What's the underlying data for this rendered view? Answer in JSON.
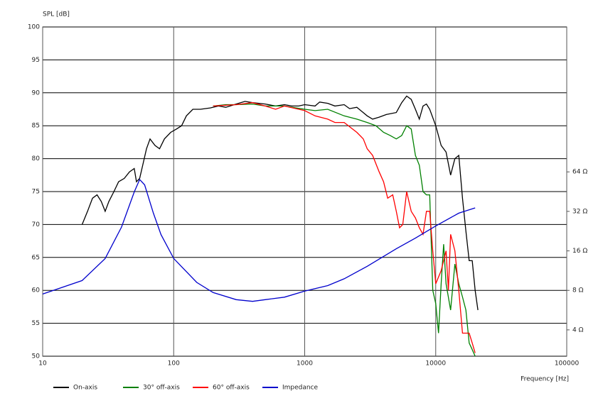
{
  "chart_data": {
    "type": "line",
    "y_label": "SPL [dB]",
    "x_label": "Frequency [Hz]",
    "x_log": true,
    "y2_log": true,
    "grid": true,
    "xlim": [
      10,
      100000
    ],
    "xticks": [
      10,
      100,
      1000,
      10000,
      100000
    ],
    "ylim": [
      50,
      100
    ],
    "yticks": [
      50,
      55,
      60,
      65,
      70,
      75,
      80,
      85,
      90,
      95,
      100
    ],
    "y2lim": [
      2.52,
      814
    ],
    "y2ticks": [
      {
        "value": 4,
        "label": "4 Ω"
      },
      {
        "value": 8,
        "label": "8 Ω"
      },
      {
        "value": 16,
        "label": "16 Ω"
      },
      {
        "value": 32,
        "label": "32 Ω"
      },
      {
        "value": 64,
        "label": "64 Ω"
      }
    ],
    "series": [
      {
        "name": "On-axis",
        "color": "#000000",
        "x": [
          20,
          22,
          24,
          26,
          28,
          30,
          32,
          35,
          38,
          42,
          46,
          50,
          52,
          55,
          58,
          62,
          66,
          72,
          78,
          85,
          95,
          105,
          115,
          125,
          140,
          160,
          190,
          220,
          250,
          300,
          350,
          400,
          500,
          600,
          700,
          800,
          900,
          1000,
          1200,
          1300,
          1500,
          1700,
          2000,
          2200,
          2500,
          3000,
          3300,
          3700,
          4200,
          5000,
          5500,
          6000,
          6500,
          7000,
          7500,
          8000,
          8500,
          9000,
          10000,
          11000,
          12000,
          13000,
          14000,
          15000,
          16000,
          17000,
          18000,
          19000,
          20000,
          21000
        ],
        "values": [
          70,
          72,
          74,
          74.5,
          73.5,
          72,
          73.5,
          75,
          76.5,
          77,
          78,
          78.5,
          76.5,
          77,
          79,
          81.5,
          83,
          82,
          81.5,
          83,
          84,
          84.5,
          85,
          86.5,
          87.5,
          87.5,
          87.7,
          88,
          87.8,
          88.3,
          88.7,
          88.5,
          88.3,
          88,
          88.2,
          88,
          88,
          88.2,
          88,
          88.6,
          88.4,
          88,
          88.2,
          87.6,
          87.8,
          86.5,
          86,
          86.3,
          86.7,
          87,
          88.5,
          89.5,
          89,
          87.5,
          86,
          88,
          88.3,
          87.5,
          85,
          82,
          81,
          77.5,
          80,
          80.5,
          74,
          69,
          64.5,
          64.5,
          60,
          57
        ]
      },
      {
        "name": "30° off-axis",
        "color": "#008000",
        "x": [
          200,
          250,
          300,
          400,
          500,
          700,
          800,
          1000,
          1200,
          1500,
          2000,
          2500,
          3000,
          3500,
          4000,
          4500,
          5000,
          5500,
          6000,
          6500,
          7000,
          7500,
          8000,
          8500,
          9000,
          9500,
          10000,
          10500,
          11000,
          11500,
          12000,
          13000,
          14000,
          15000,
          16000,
          17000,
          18000,
          19000,
          20000
        ],
        "values": [
          88,
          88.2,
          88.2,
          88.3,
          88,
          88,
          87.8,
          87.5,
          87.3,
          87.5,
          86.5,
          86,
          85.5,
          85,
          84,
          83.5,
          83,
          83.5,
          85,
          84.5,
          80.5,
          79,
          75,
          74.5,
          74.5,
          60,
          58,
          53.5,
          61,
          67,
          61,
          57,
          64,
          61,
          59,
          57,
          52,
          51,
          50
        ]
      },
      {
        "name": "60° off-axis",
        "color": "#ff0000",
        "x": [
          200,
          300,
          400,
          500,
          600,
          700,
          1000,
          1200,
          1500,
          1700,
          2000,
          2500,
          2800,
          3000,
          3300,
          3700,
          4000,
          4300,
          4700,
          5000,
          5300,
          5600,
          6000,
          6500,
          7000,
          7500,
          8000,
          8500,
          9000,
          9500,
          10000,
          11000,
          12000,
          12500,
          13000,
          14000,
          15000,
          16000,
          18000,
          19000,
          20000
        ],
        "values": [
          88,
          88.2,
          88.5,
          88,
          87.5,
          88,
          87.3,
          86.5,
          86,
          85.5,
          85.5,
          84,
          83,
          81.5,
          80.5,
          78,
          76.5,
          74,
          74.5,
          72,
          69.5,
          70,
          75,
          72,
          71,
          69.5,
          68.5,
          72,
          72,
          66,
          61,
          63,
          66,
          60,
          68.5,
          66,
          60,
          53.5,
          53.5,
          52,
          50.5
        ]
      },
      {
        "name": "Impedance",
        "color": "#0000cc",
        "axis": "y2",
        "x": [
          10,
          20,
          30,
          40,
          50,
          55,
          60,
          70,
          80,
          100,
          150,
          200,
          300,
          400,
          500,
          700,
          1000,
          1500,
          2000,
          3000,
          5000,
          7000,
          10000,
          15000,
          20000
        ],
        "values": [
          7.5,
          9.5,
          14,
          24.3,
          45,
          56,
          51,
          31,
          21.3,
          14,
          9.2,
          7.7,
          6.8,
          6.6,
          6.8,
          7.1,
          7.9,
          8.7,
          9.8,
          12.2,
          16.6,
          20,
          24.8,
          31,
          34
        ]
      }
    ]
  }
}
